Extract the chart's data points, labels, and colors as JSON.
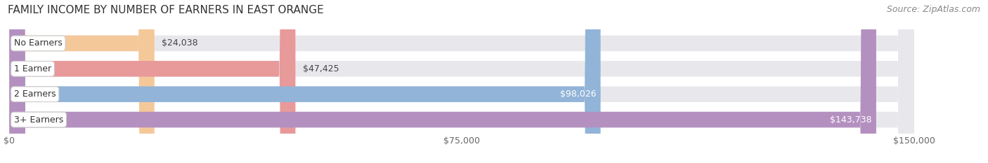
{
  "title": "FAMILY INCOME BY NUMBER OF EARNERS IN EAST ORANGE",
  "source": "Source: ZipAtlas.com",
  "categories": [
    "No Earners",
    "1 Earner",
    "2 Earners",
    "3+ Earners"
  ],
  "values": [
    24038,
    47425,
    98026,
    143738
  ],
  "bar_colors": [
    "#f5c89a",
    "#e8999a",
    "#92b4d8",
    "#b490c0"
  ],
  "bg_bar_color": "#e8e8ec",
  "max_value": 150000,
  "xticks": [
    0,
    75000,
    150000
  ],
  "xtick_labels": [
    "$0",
    "$75,000",
    "$150,000"
  ],
  "value_labels": [
    "$24,038",
    "$47,425",
    "$98,026",
    "$143,738"
  ],
  "value_inside": [
    false,
    false,
    true,
    true
  ],
  "background_color": "#ffffff",
  "title_fontsize": 11,
  "source_fontsize": 9,
  "bar_height": 0.62,
  "label_fontsize": 9,
  "value_fontsize": 9,
  "bar_gap": 0.18
}
